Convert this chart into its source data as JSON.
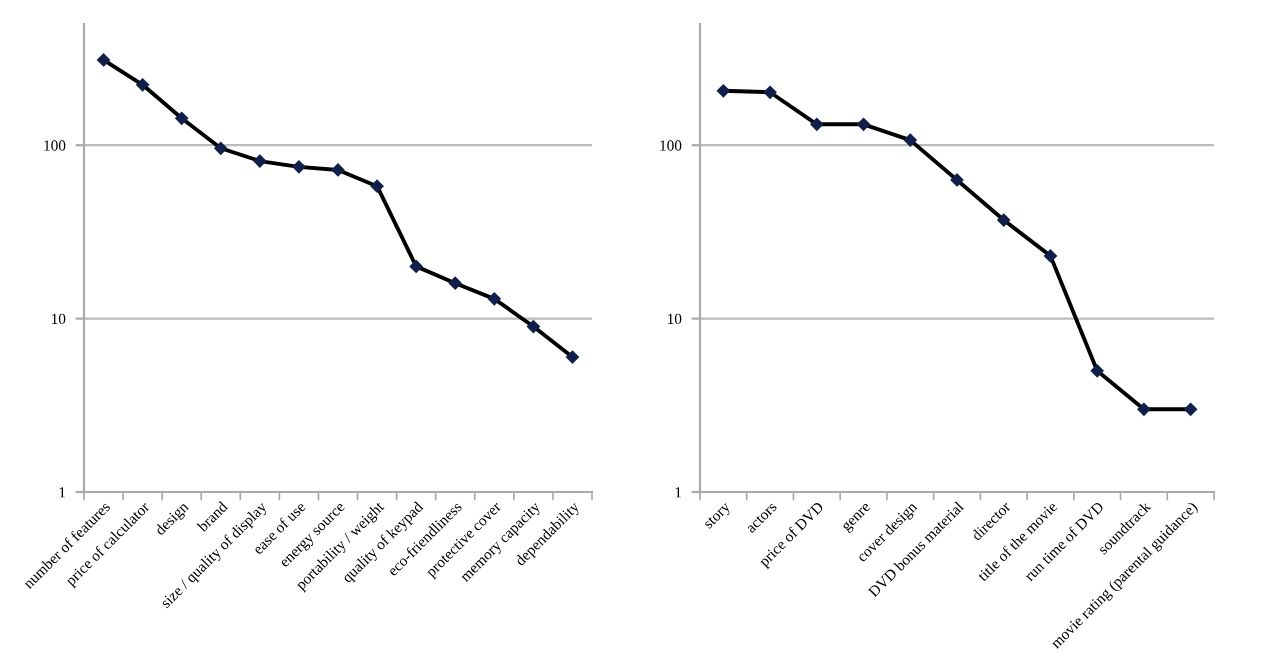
{
  "chart_data": [
    {
      "type": "line",
      "categories": [
        "number of features",
        "price of calculator",
        "design",
        "brand",
        "size / quality of display",
        "ease of use",
        "energy source",
        "portability / weight",
        "quality of keypad",
        "eco-friendliness",
        "protective cover",
        "memory capacity",
        "dependability"
      ],
      "values": [
        310,
        223,
        143,
        96,
        81,
        75,
        72,
        58,
        20,
        16,
        13,
        9,
        6
      ],
      "color": "#000000",
      "ylim": [
        1,
        500
      ],
      "yticks": [
        1,
        10,
        100
      ],
      "log": true,
      "grid": "y",
      "marker": "diamond",
      "line_style": "solid"
    },
    {
      "type": "line",
      "categories": [
        "story",
        "actors",
        "price of DVD",
        "genre",
        "cover design",
        "DVD bonus material",
        "director",
        "title of the movie",
        "run time of DVD",
        "soundtrack",
        "movie rating (parental guidance)"
      ],
      "values": [
        206,
        202,
        132,
        132,
        107,
        63,
        37,
        23,
        5,
        3,
        3
      ],
      "color": "#000000",
      "ylim": [
        1,
        500
      ],
      "yticks": [
        1,
        10,
        100
      ],
      "log": true,
      "grid": "y",
      "marker": "diamond",
      "line_style": "solid"
    }
  ]
}
